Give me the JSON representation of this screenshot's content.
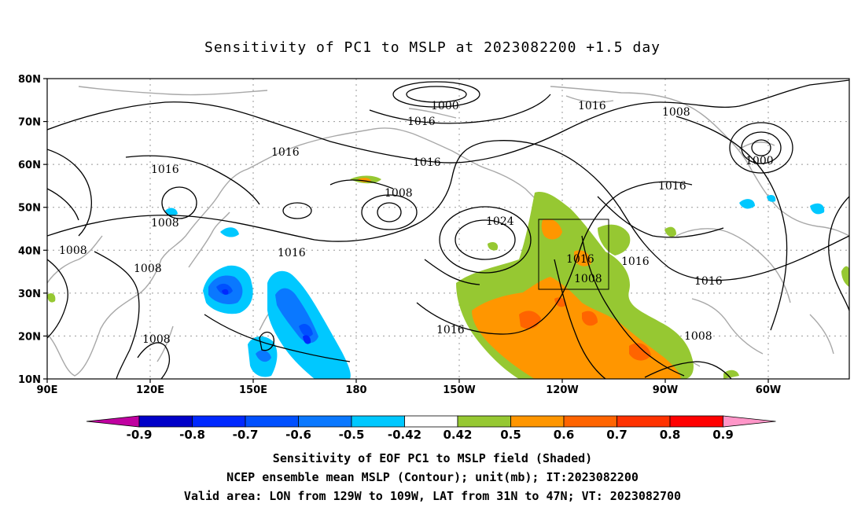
{
  "title": "Sensitivity of PC1 to MSLP at 2023082200 +1.5 day",
  "map": {
    "lat_labels": [
      "80N",
      "70N",
      "60N",
      "50N",
      "40N",
      "30N",
      "20N",
      "10N"
    ],
    "lon_labels": [
      "90E",
      "120E",
      "150E",
      "180",
      "150W",
      "120W",
      "90W",
      "60W"
    ],
    "contour_labels": [
      "1000",
      "1016",
      "1016",
      "1008",
      "1000",
      "1016",
      "1016",
      "1016",
      "1008",
      "1024",
      "1016",
      "1008",
      "1016",
      "1016",
      "1008",
      "1008",
      "1008",
      "1016",
      "1008",
      "1016",
      "1008",
      "1016"
    ],
    "valid_box": {
      "lon_west": "129W",
      "lon_east": "109W",
      "lat_south": "31N",
      "lat_north": "47N"
    }
  },
  "colorbar": {
    "labels": [
      "-0.9",
      "-0.8",
      "-0.7",
      "-0.6",
      "-0.5",
      "-0.42",
      "0.42",
      "0.5",
      "0.6",
      "0.7",
      "0.8",
      "0.9"
    ],
    "colors": [
      "#c000a0",
      "#0000c8",
      "#0028ff",
      "#0050ff",
      "#0a78ff",
      "#00c8ff",
      "#ffffff",
      "#96c832",
      "#ff9600",
      "#ff6400",
      "#ff3200",
      "#ff0000",
      "#ff96c8"
    ]
  },
  "captions": {
    "line1": "Sensitivity of EOF PC1 to MSLP field (Shaded)",
    "line2": "NCEP ensemble mean MSLP (Contour); unit(mb); IT:2023082200",
    "line3": "Valid area: LON from 129W to 109W, LAT from 31N to 47N; VT: 2023082700"
  }
}
